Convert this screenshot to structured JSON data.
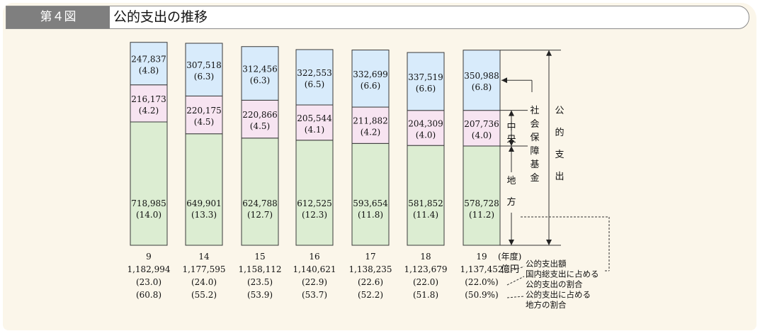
{
  "figure": {
    "number": "第４図",
    "title": "公的支出の推移"
  },
  "colors": {
    "local": "#dcedd2",
    "social_security": "#f7e4f1",
    "central": "#d8ebfb",
    "stroke": "#3a3a3a"
  },
  "chart_data": {
    "type": "bar",
    "stacked": true,
    "categories": [
      "9",
      "14",
      "15",
      "16",
      "17",
      "18",
      "19"
    ],
    "category_unit": "(年度)",
    "series": [
      {
        "name": "地　方",
        "values": [
          718985,
          649901,
          624788,
          612525,
          593654,
          581852,
          578728
        ],
        "labels": [
          "718,985",
          "649,901",
          "624,788",
          "612,525",
          "593,654",
          "581,852",
          "578,728"
        ],
        "pct": [
          "(14.0)",
          "(13.3)",
          "(12.7)",
          "(12.3)",
          "(11.8)",
          "(11.4)",
          "(11.2)"
        ]
      },
      {
        "name": "中央",
        "values": [
          216173,
          220175,
          220866,
          205544,
          211882,
          204309,
          207736
        ],
        "labels": [
          "216,173",
          "220,175",
          "220,866",
          "205,544",
          "211,882",
          "204,309",
          "207,736"
        ],
        "pct": [
          "(4.2)",
          "(4.5)",
          "(4.5)",
          "(4.1)",
          "(4.2)",
          "(4.0)",
          "(4.0)"
        ]
      },
      {
        "name": "社会保障基金",
        "values": [
          247837,
          307518,
          312456,
          322553,
          332699,
          337519,
          350988
        ],
        "labels": [
          "247,837",
          "307,518",
          "312,456",
          "322,553",
          "332,699",
          "337,519",
          "350,988"
        ],
        "pct": [
          "(4.8)",
          "(6.3)",
          "(6.3)",
          "(6.5)",
          "(6.6)",
          "(6.6)",
          "(6.8)"
        ]
      }
    ],
    "totals": {
      "values": [
        1182994,
        1177595,
        1158112,
        1140621,
        1138235,
        1123679,
        1137452
      ],
      "labels": [
        "1,182,994",
        "1,177,595",
        "1,158,112",
        "1,140,621",
        "1,138,235",
        "1,123,679",
        "1,137,452"
      ],
      "unit": "億円"
    },
    "gdp_share": [
      "(23.0)",
      "(24.0)",
      "(23.5)",
      "(22.9)",
      "(22.6)",
      "(22.0)",
      "(22.0%)"
    ],
    "local_share": [
      "(60.8)",
      "(55.2)",
      "(53.9)",
      "(53.7)",
      "(52.2)",
      "(51.8)",
      "(50.9%)"
    ],
    "bracket_labels": {
      "total": "公　的　支　出"
    },
    "notes": [
      "公的支出額",
      "国内総支出に占める",
      "公的支出の割合",
      "公的支出に占める",
      "地方の割合"
    ]
  }
}
